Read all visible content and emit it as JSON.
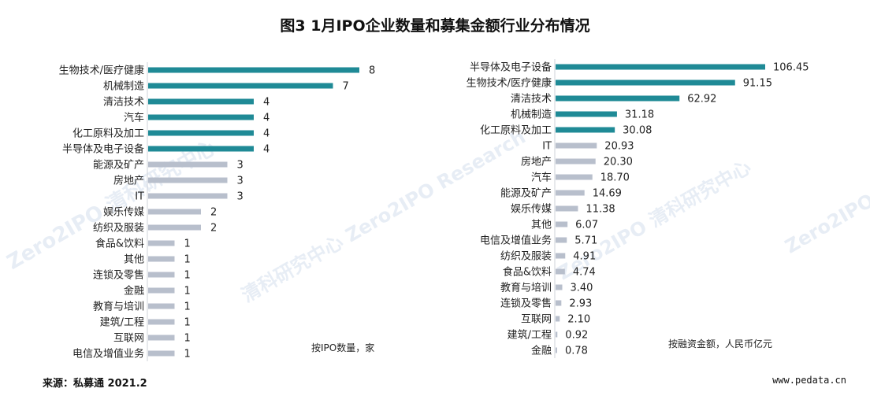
{
  "title": "图3  1月IPO企业数量和募集金额行业分布情况",
  "source": "来源：私募通   2021.2",
  "site": "www.pedata.cn",
  "watermark": {
    "brand": "Zero2IPO",
    "cn": "清科研究中心",
    "en": "Zero2IPO Research"
  },
  "colors": {
    "highlight": "#1f8a96",
    "normal": "#b8bfcc"
  },
  "chart_data": [
    {
      "type": "bar",
      "orientation": "horizontal",
      "unit_note": "按IPO数量，家",
      "highlight_count": 6,
      "categories": [
        "生物技术/医疗健康",
        "机械制造",
        "清洁技术",
        "汽车",
        "化工原料及加工",
        "半导体及电子设备",
        "能源及矿产",
        "房地产",
        "IT",
        "娱乐传媒",
        "纺织及服装",
        "食品&饮料",
        "其他",
        "连锁及零售",
        "金融",
        "教育与培训",
        "建筑/工程",
        "互联网",
        "电信及增值业务"
      ],
      "values": [
        8,
        7,
        4,
        4,
        4,
        4,
        3,
        3,
        3,
        2,
        2,
        1,
        1,
        1,
        1,
        1,
        1,
        1,
        1
      ],
      "labels": [
        "8",
        "7",
        "4",
        "4",
        "4",
        "4",
        "3",
        "3",
        "3",
        "2",
        "2",
        "1",
        "1",
        "1",
        "1",
        "1",
        "1",
        "1",
        "1"
      ],
      "xlim": [
        0,
        8
      ]
    },
    {
      "type": "bar",
      "orientation": "horizontal",
      "unit_note": "按融资金额，人民币亿元",
      "highlight_count": 5,
      "categories": [
        "半导体及电子设备",
        "生物技术/医疗健康",
        "清洁技术",
        "机械制造",
        "化工原料及加工",
        "IT",
        "房地产",
        "汽车",
        "能源及矿产",
        "娱乐传媒",
        "其他",
        "电信及增值业务",
        "纺织及服装",
        "食品&饮料",
        "教育与培训",
        "连锁及零售",
        "互联网",
        "建筑/工程",
        "金融"
      ],
      "values": [
        106.45,
        91.15,
        62.92,
        31.18,
        30.08,
        20.93,
        20.3,
        18.7,
        14.69,
        11.38,
        6.07,
        5.71,
        4.91,
        4.74,
        3.4,
        2.93,
        2.1,
        0.92,
        0.78
      ],
      "labels": [
        "106.45",
        "91.15",
        "62.92",
        "31.18",
        "30.08",
        "20.93",
        "20.30",
        "18.70",
        "14.69",
        "11.38",
        "6.07",
        "5.71",
        "4.91",
        "4.74",
        "3.40",
        "2.93",
        "2.10",
        "0.92",
        "0.78"
      ],
      "xlim": [
        0,
        106.45
      ]
    }
  ]
}
